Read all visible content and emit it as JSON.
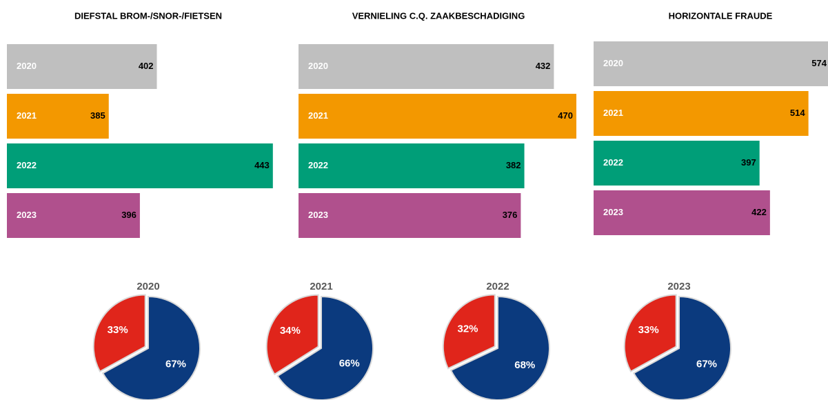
{
  "chart_data": [
    {
      "type": "hbar",
      "title": "DIEFSTAL BROM-/SNOR-/FIETSEN",
      "categories": [
        "2020",
        "2021",
        "2022",
        "2023"
      ],
      "values": [
        402,
        385,
        443,
        396
      ],
      "colors": [
        "#bfbfbf",
        "#f39800",
        "#009e78",
        "#b0508d"
      ],
      "xlim": [
        349,
        445
      ]
    },
    {
      "type": "hbar",
      "title": "VERNIELING C.Q. ZAAKBESCHADIGING",
      "categories": [
        "2020",
        "2021",
        "2022",
        "2023"
      ],
      "values": [
        432,
        470,
        382,
        376
      ],
      "colors": [
        "#bfbfbf",
        "#f39800",
        "#009e78",
        "#b0508d"
      ],
      "xlim": [
        0,
        470
      ]
    },
    {
      "type": "hbar",
      "title": "HORIZONTALE FRAUDE",
      "categories": [
        "2020",
        "2021",
        "2022",
        "2023"
      ],
      "values": [
        574,
        514,
        397,
        422
      ],
      "colors": [
        "#bfbfbf",
        "#f39800",
        "#009e78",
        "#b0508d"
      ],
      "xlim": [
        0,
        574
      ]
    },
    {
      "type": "pie",
      "title": "2020",
      "values": [
        67,
        33
      ],
      "value_labels": [
        "67%",
        "33%"
      ],
      "colors": [
        "#0b3a7e",
        "#e0251b"
      ]
    },
    {
      "type": "pie",
      "title": "2021",
      "values": [
        66,
        34
      ],
      "value_labels": [
        "66%",
        "34%"
      ],
      "colors": [
        "#0b3a7e",
        "#e0251b"
      ]
    },
    {
      "type": "pie",
      "title": "2022",
      "values": [
        68,
        32
      ],
      "value_labels": [
        "68%",
        "32%"
      ],
      "colors": [
        "#0b3a7e",
        "#e0251b"
      ]
    },
    {
      "type": "pie",
      "title": "2023",
      "values": [
        67,
        33
      ],
      "value_labels": [
        "67%",
        "33%"
      ],
      "colors": [
        "#0b3a7e",
        "#e0251b"
      ]
    }
  ]
}
